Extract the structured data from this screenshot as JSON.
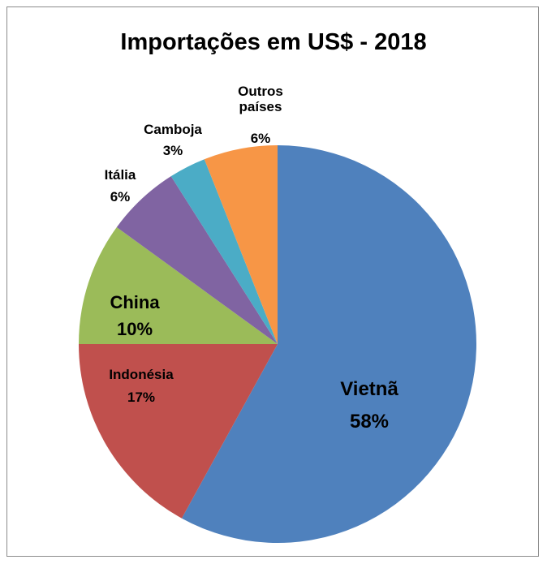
{
  "chart_data": {
    "type": "pie",
    "title": "Importações em US$ - 2018",
    "categories": [
      "Vietnã",
      "Indonésia",
      "China",
      "Itália",
      "Camboja",
      "Outros países"
    ],
    "values": [
      58,
      17,
      10,
      6,
      3,
      6
    ],
    "value_labels": [
      "58%",
      "17%",
      "10%",
      "6%",
      "3%",
      "6%"
    ],
    "colors": [
      "#4f81bd",
      "#c0504d",
      "#9bbb59",
      "#8064a2",
      "#4bacc6",
      "#f79646"
    ]
  }
}
